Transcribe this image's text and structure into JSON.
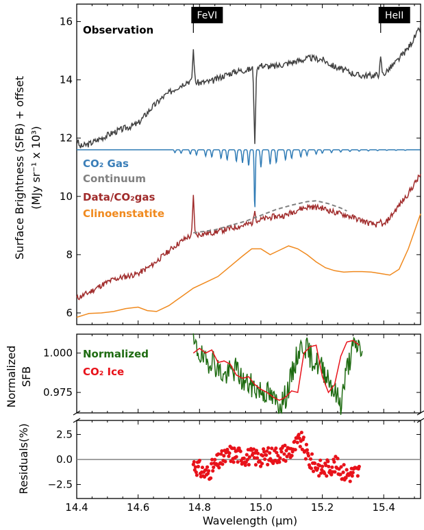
{
  "chart_data": [
    {
      "type": "line",
      "panel": "top",
      "ylabel": "Surface Brightness (SFB) + offset",
      "ylabel2": "(MJy sr⁻¹ x 10³)",
      "xlim": [
        14.4,
        15.52
      ],
      "ylim": [
        5.6,
        16.6
      ],
      "yticks": [
        6,
        8,
        10,
        12,
        14,
        16
      ],
      "xticks": [
        14.4,
        14.6,
        14.8,
        15.0,
        15.2,
        15.4
      ],
      "xtick_labels": [
        "14.4",
        "14.6",
        "14.8",
        "15.0",
        "15.2",
        "15.4"
      ],
      "line_markers": [
        {
          "label": "FeVI",
          "x": 14.78
        },
        {
          "label": "HeII",
          "x": 15.39
        }
      ],
      "legend": [
        {
          "text": "Observation",
          "color": "#000000"
        },
        {
          "text": "CO₂ Gas",
          "color": "#3a7eb8"
        },
        {
          "text": "Continuum",
          "color": "#808080"
        },
        {
          "text": "Data/CO₂gas",
          "color": "#a02b2b"
        },
        {
          "text": "Clinoenstatite",
          "color": "#f0891d"
        }
      ],
      "series": [
        {
          "name": "Observation",
          "color": "#404040",
          "x": [
            14.4,
            14.41,
            14.44,
            14.48,
            14.52,
            14.56,
            14.6,
            14.64,
            14.68,
            14.72,
            14.76,
            14.8,
            14.84,
            14.88,
            14.92,
            14.96,
            15.0,
            15.04,
            15.08,
            15.12,
            15.16,
            15.2,
            15.24,
            15.28,
            15.32,
            15.36,
            15.4,
            15.44,
            15.48,
            15.52
          ],
          "y": [
            12.0,
            11.7,
            11.8,
            12.0,
            12.2,
            12.35,
            12.5,
            13.0,
            13.4,
            13.7,
            13.95,
            13.9,
            13.95,
            14.15,
            14.3,
            14.35,
            14.5,
            14.45,
            14.55,
            14.65,
            14.75,
            14.7,
            14.45,
            14.3,
            14.15,
            14.15,
            14.2,
            14.6,
            15.1,
            15.8
          ],
          "spikes": [
            [
              14.78,
              15.05
            ],
            [
              14.98,
              11.8
            ],
            [
              15.39,
              14.8
            ]
          ]
        },
        {
          "name": "CO₂ Gas",
          "color": "#2f7bb5",
          "baseline": 11.6,
          "x_range": [
            14.4,
            15.52
          ],
          "absorptions": [
            [
              14.72,
              0.1
            ],
            [
              14.74,
              0.12
            ],
            [
              14.77,
              0.15
            ],
            [
              14.79,
              0.18
            ],
            [
              14.82,
              0.22
            ],
            [
              14.84,
              0.25
            ],
            [
              14.87,
              0.3
            ],
            [
              14.89,
              0.35
            ],
            [
              14.92,
              0.4
            ],
            [
              14.94,
              0.45
            ],
            [
              14.96,
              0.55
            ],
            [
              14.98,
              2.05
            ],
            [
              15.0,
              0.6
            ],
            [
              15.03,
              0.5
            ],
            [
              15.05,
              0.45
            ],
            [
              15.08,
              0.35
            ],
            [
              15.1,
              0.3
            ],
            [
              15.13,
              0.25
            ],
            [
              15.15,
              0.2
            ],
            [
              15.18,
              0.15
            ],
            [
              15.2,
              0.12
            ],
            [
              15.23,
              0.1
            ],
            [
              15.26,
              0.08
            ],
            [
              15.29,
              0.06
            ],
            [
              15.32,
              0.05
            ],
            [
              15.35,
              0.04
            ],
            [
              15.38,
              0.03
            ],
            [
              15.41,
              0.02
            ],
            [
              15.44,
              0.02
            ],
            [
              15.47,
              0.02
            ]
          ]
        },
        {
          "name": "Continuum",
          "color": "#808080",
          "dashed": true,
          "x": [
            14.78,
            14.85,
            14.9,
            14.95,
            15.0,
            15.05,
            15.1,
            15.15,
            15.18,
            15.22,
            15.26,
            15.28
          ],
          "y": [
            8.75,
            8.85,
            9.0,
            9.15,
            9.35,
            9.55,
            9.7,
            9.82,
            9.85,
            9.75,
            9.6,
            9.5
          ]
        },
        {
          "name": "Data/CO₂gas",
          "color": "#a02b2b",
          "x": [
            14.4,
            14.44,
            14.48,
            14.52,
            14.56,
            14.6,
            14.64,
            14.68,
            14.72,
            14.76,
            14.8,
            14.84,
            14.88,
            14.92,
            14.96,
            15.0,
            15.04,
            15.08,
            15.12,
            15.16,
            15.2,
            15.24,
            15.28,
            15.32,
            15.36,
            15.4,
            15.44,
            15.48,
            15.52
          ],
          "y": [
            6.5,
            6.7,
            6.95,
            7.15,
            7.25,
            7.35,
            7.6,
            7.95,
            8.3,
            8.6,
            8.7,
            8.75,
            8.85,
            8.95,
            9.05,
            9.2,
            9.3,
            9.35,
            9.55,
            9.65,
            9.6,
            9.45,
            9.35,
            9.2,
            9.05,
            9.0,
            9.55,
            10.1,
            10.75
          ],
          "spikes": [
            [
              14.78,
              10.05
            ],
            [
              14.98,
              9.5
            ],
            [
              15.39,
              9.2
            ]
          ]
        },
        {
          "name": "Clinoenstatite",
          "color": "#f0891d",
          "x": [
            14.4,
            14.44,
            14.48,
            14.52,
            14.56,
            14.6,
            14.63,
            14.66,
            14.7,
            14.74,
            14.78,
            14.82,
            14.86,
            14.9,
            14.94,
            14.97,
            15.0,
            15.03,
            15.06,
            15.09,
            15.12,
            15.15,
            15.18,
            15.21,
            15.24,
            15.27,
            15.3,
            15.33,
            15.36,
            15.39,
            15.42,
            15.45,
            15.48,
            15.52
          ],
          "y": [
            5.85,
            5.98,
            6.0,
            6.05,
            6.15,
            6.2,
            6.08,
            6.05,
            6.25,
            6.55,
            6.85,
            7.05,
            7.25,
            7.6,
            7.95,
            8.2,
            8.2,
            8.0,
            8.15,
            8.3,
            8.2,
            8.0,
            7.75,
            7.55,
            7.45,
            7.4,
            7.42,
            7.42,
            7.4,
            7.35,
            7.3,
            7.5,
            8.2,
            9.4
          ]
        }
      ]
    },
    {
      "type": "line",
      "panel": "middle",
      "ylabel": "Normalized",
      "ylabel2": "SFB",
      "xlim": [
        14.4,
        15.52
      ],
      "ylim": [
        0.962,
        1.012
      ],
      "yticks": [
        0.975,
        1.0
      ],
      "ytick_labels": [
        "0.975",
        "1.000"
      ],
      "legend": [
        {
          "text": "Normalized",
          "color": "#1e6b11"
        },
        {
          "text": "CO₂ Ice",
          "color": "#e8121a"
        }
      ],
      "series": [
        {
          "name": "Normalized",
          "color": "#1e6b11",
          "x": [
            14.78,
            14.8,
            14.82,
            14.84,
            14.86,
            14.88,
            14.9,
            14.92,
            14.94,
            14.96,
            14.98,
            15.0,
            15.02,
            15.04,
            15.06,
            15.08,
            15.1,
            15.12,
            15.14,
            15.16,
            15.18,
            15.2,
            15.22,
            15.24,
            15.26,
            15.28,
            15.3,
            15.32,
            15.33
          ],
          "y": [
            1.005,
            1.0,
            0.993,
            0.997,
            0.99,
            0.985,
            0.988,
            0.99,
            0.982,
            0.98,
            0.978,
            0.976,
            0.975,
            0.97,
            0.968,
            0.972,
            0.985,
            1.0,
            1.006,
            0.998,
            0.994,
            0.99,
            0.985,
            0.975,
            0.968,
            0.99,
            1.003,
            1.005,
            1.0
          ],
          "noise": 0.008
        },
        {
          "name": "CO₂ Ice",
          "color": "#e8121a",
          "x": [
            14.78,
            14.8,
            14.82,
            14.84,
            14.86,
            14.88,
            14.9,
            14.92,
            14.94,
            14.96,
            14.98,
            15.0,
            15.02,
            15.04,
            15.06,
            15.08,
            15.1,
            15.12,
            15.14,
            15.16,
            15.18,
            15.2,
            15.22,
            15.24,
            15.26,
            15.28,
            15.3,
            15.32
          ],
          "y": [
            1.0,
            1.003,
            1.0,
            1.002,
            0.994,
            0.995,
            0.993,
            0.986,
            0.984,
            0.985,
            0.98,
            0.977,
            0.975,
            0.972,
            0.97,
            0.972,
            0.976,
            0.975,
            1.0,
            1.004,
            1.005,
            0.985,
            0.975,
            0.98,
            0.998,
            1.007,
            1.008,
            1.005
          ]
        }
      ]
    },
    {
      "type": "scatter",
      "panel": "bottom",
      "ylabel": "Residuals(%)",
      "xlabel": "Wavelength (μm)",
      "xlim": [
        14.4,
        15.52
      ],
      "ylim": [
        -3.9,
        3.9
      ],
      "yticks": [
        -2.5,
        0.0,
        2.5
      ],
      "ytick_labels": [
        "−2.5",
        "0.0",
        "2.5"
      ],
      "zero_line": 0,
      "points_color": "#e8121a",
      "x_range": [
        14.78,
        15.32
      ],
      "trend": {
        "x": [
          14.78,
          14.82,
          14.86,
          14.9,
          14.95,
          15.0,
          15.05,
          15.1,
          15.13,
          15.16,
          15.2,
          15.24,
          15.28,
          15.32
        ],
        "y": [
          -0.4,
          -1.5,
          -0.3,
          0.6,
          0.3,
          0.2,
          0.5,
          0.9,
          2.0,
          -0.2,
          -1.0,
          -0.5,
          -1.5,
          -1.2
        ]
      },
      "noise": 0.9,
      "n_points": 240
    }
  ]
}
